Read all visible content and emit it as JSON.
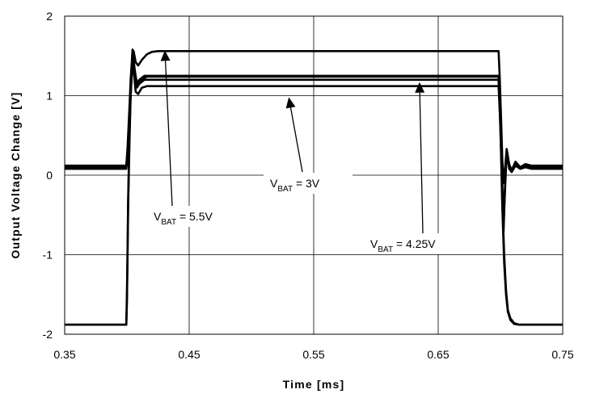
{
  "chart_data": {
    "type": "line",
    "title": "",
    "xlabel": "Time [ms]",
    "ylabel": "Output Voltage Change [V]",
    "xlim": [
      0.35,
      0.75
    ],
    "ylim": [
      -2,
      2
    ],
    "xticks": [
      0.35,
      0.45,
      0.55,
      0.65,
      0.75
    ],
    "xtick_labels": [
      "0.35",
      "0.45",
      "0.55",
      "0.65",
      "0.75"
    ],
    "yticks": [
      2,
      1,
      0,
      -1,
      -2
    ],
    "ytick_labels": [
      "2",
      "1",
      "0",
      "-1",
      "-2"
    ],
    "grid": true,
    "series": [
      {
        "x": [
          0.35,
          0.3995,
          0.4005,
          0.402,
          0.403,
          0.404,
          0.4045,
          0.4055,
          0.407,
          0.409,
          0.412,
          0.416,
          0.42,
          0.425,
          0.43,
          0.6985,
          0.6995,
          0.7005,
          0.7015,
          0.7025,
          0.7035,
          0.705,
          0.707,
          0.709,
          0.712,
          0.716,
          0.72,
          0.725,
          0.75
        ],
        "y": [
          0.12,
          0.12,
          0.35,
          0.85,
          1.2,
          1.45,
          1.58,
          1.55,
          1.42,
          1.38,
          1.45,
          1.52,
          1.55,
          1.56,
          1.56,
          1.56,
          1.2,
          0.7,
          0.2,
          -0.1,
          0.05,
          0.33,
          0.14,
          0.06,
          0.17,
          0.1,
          0.14,
          0.12,
          0.12
        ]
      },
      {
        "x": [
          0.35,
          0.3995,
          0.4005,
          0.402,
          0.403,
          0.404,
          0.4045,
          0.4055,
          0.407,
          0.409,
          0.412,
          0.416,
          0.42,
          0.425,
          0.43,
          0.6985,
          0.6995,
          0.7005,
          0.7015,
          0.7025,
          0.7035,
          0.705,
          0.707,
          0.709,
          0.712,
          0.716,
          0.72,
          0.725,
          0.75
        ],
        "y": [
          0.1,
          0.1,
          0.3,
          0.75,
          1.1,
          1.4,
          1.55,
          1.42,
          1.22,
          1.15,
          1.2,
          1.24,
          1.24,
          1.24,
          1.24,
          1.24,
          0.9,
          0.4,
          -0.1,
          -0.7,
          -0.2,
          0.3,
          0.1,
          0.05,
          0.14,
          0.09,
          0.12,
          0.1,
          0.1
        ]
      },
      {
        "x": [
          0.35,
          0.3995,
          0.4005,
          0.402,
          0.403,
          0.404,
          0.4045,
          0.4055,
          0.407,
          0.409,
          0.412,
          0.416,
          0.42,
          0.425,
          0.43,
          0.6985,
          0.6995,
          0.7005,
          0.7015,
          0.7025,
          0.7035,
          0.705,
          0.707,
          0.709,
          0.712,
          0.716,
          0.72,
          0.725,
          0.75
        ],
        "y": [
          0.08,
          0.08,
          0.25,
          0.65,
          1.0,
          1.3,
          1.5,
          1.3,
          1.05,
          1.02,
          1.1,
          1.12,
          1.12,
          1.12,
          1.12,
          1.12,
          0.8,
          0.3,
          -0.2,
          -0.6,
          -0.25,
          0.3,
          0.08,
          0.04,
          0.12,
          0.08,
          0.1,
          0.08,
          0.08
        ]
      },
      {
        "x": [
          0.35,
          0.3995,
          0.4,
          0.4005,
          0.401,
          0.402,
          0.403,
          0.404,
          0.405,
          0.406,
          0.408,
          0.41,
          0.414,
          0.43,
          0.6985,
          0.7,
          0.7015,
          0.703,
          0.7045,
          0.706,
          0.708,
          0.711,
          0.715,
          0.72,
          0.75
        ],
        "y": [
          -1.88,
          -1.88,
          -1.5,
          -0.9,
          -0.3,
          0.5,
          1.1,
          1.4,
          1.5,
          1.35,
          1.15,
          1.2,
          1.25,
          1.25,
          1.25,
          0.7,
          -0.3,
          -1.0,
          -1.45,
          -1.7,
          -1.8,
          -1.86,
          -1.88,
          -1.88,
          -1.88
        ]
      },
      {
        "x": [
          0.35,
          0.3995,
          0.4,
          0.4005,
          0.401,
          0.402,
          0.403,
          0.404,
          0.405,
          0.406,
          0.408,
          0.41,
          0.414,
          0.43,
          0.6985,
          0.7,
          0.7015,
          0.703,
          0.7045,
          0.706,
          0.708,
          0.711,
          0.715,
          0.72,
          0.75
        ],
        "y": [
          -1.88,
          -1.88,
          -1.6,
          -1.0,
          -0.4,
          0.4,
          1.0,
          1.35,
          1.45,
          1.3,
          1.1,
          1.15,
          1.2,
          1.2,
          1.2,
          0.6,
          -0.4,
          -1.1,
          -1.5,
          -1.72,
          -1.82,
          -1.87,
          -1.88,
          -1.88,
          -1.88
        ]
      }
    ],
    "annotations": [
      {
        "main": "V",
        "sub": "BAT",
        "value": " = 5.5V",
        "arrow_to": {
          "x": 0.4305,
          "y": 1.57
        }
      },
      {
        "main": "V",
        "sub": "BAT",
        "value": " = 3V",
        "arrow_to": {
          "x": 0.53,
          "y": 0.98
        }
      },
      {
        "main": "V",
        "sub": "BAT",
        "value": " = 4.25V",
        "arrow_to": {
          "x": 0.635,
          "y": 1.17
        }
      }
    ]
  }
}
